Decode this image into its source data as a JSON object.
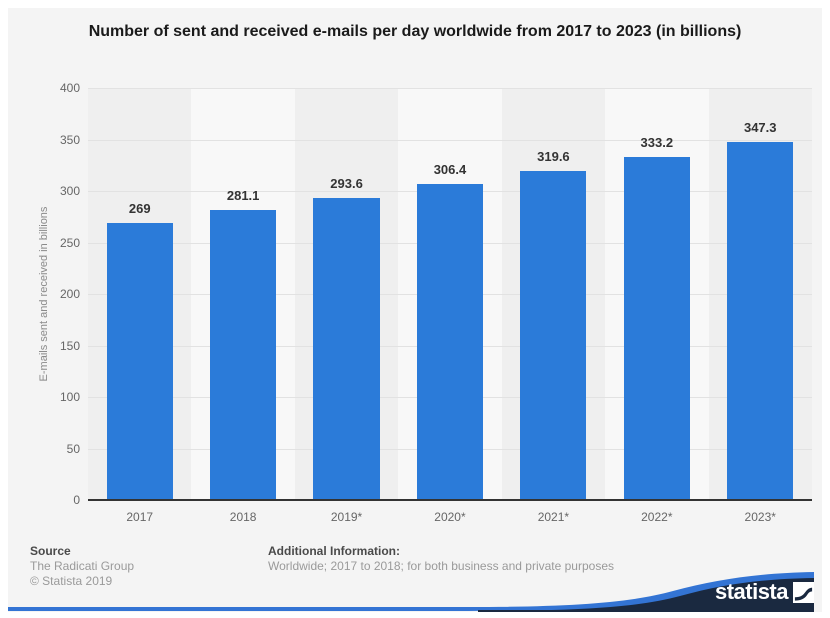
{
  "title": "Number of sent and received e-mails per day worldwide from 2017 to 2023 (in billions)",
  "chart_data": {
    "type": "bar",
    "categories": [
      "2017",
      "2018",
      "2019*",
      "2020*",
      "2021*",
      "2022*",
      "2023*"
    ],
    "values": [
      269,
      281.1,
      293.6,
      306.4,
      319.6,
      333.2,
      347.3
    ],
    "value_labels": [
      "269",
      "281.1",
      "293.6",
      "306.4",
      "319.6",
      "333.2",
      "347.3"
    ],
    "title": "Number of sent and received e-mails per day worldwide from 2017 to 2023 (in billions)",
    "xlabel": "",
    "ylabel": "E-mails sent and received in billions",
    "ylim": [
      0,
      400
    ],
    "yticks": [
      0,
      50,
      100,
      150,
      200,
      250,
      300,
      350,
      400
    ],
    "grid": true,
    "legend": false,
    "bar_color": "#2b7bd9",
    "plot_band_colors": [
      "#efefef",
      "#f8f8f8"
    ]
  },
  "footer": {
    "source_label": "Source",
    "source_lines": [
      "The Radicati Group",
      "© Statista 2019"
    ],
    "additional_label": "Additional Information:",
    "additional_text": "Worldwide; 2017 to 2018; for both business and private purposes"
  },
  "branding": {
    "logo_text": "statista",
    "navy_color": "#1a2940",
    "swoosh_color": "#3374d4"
  }
}
